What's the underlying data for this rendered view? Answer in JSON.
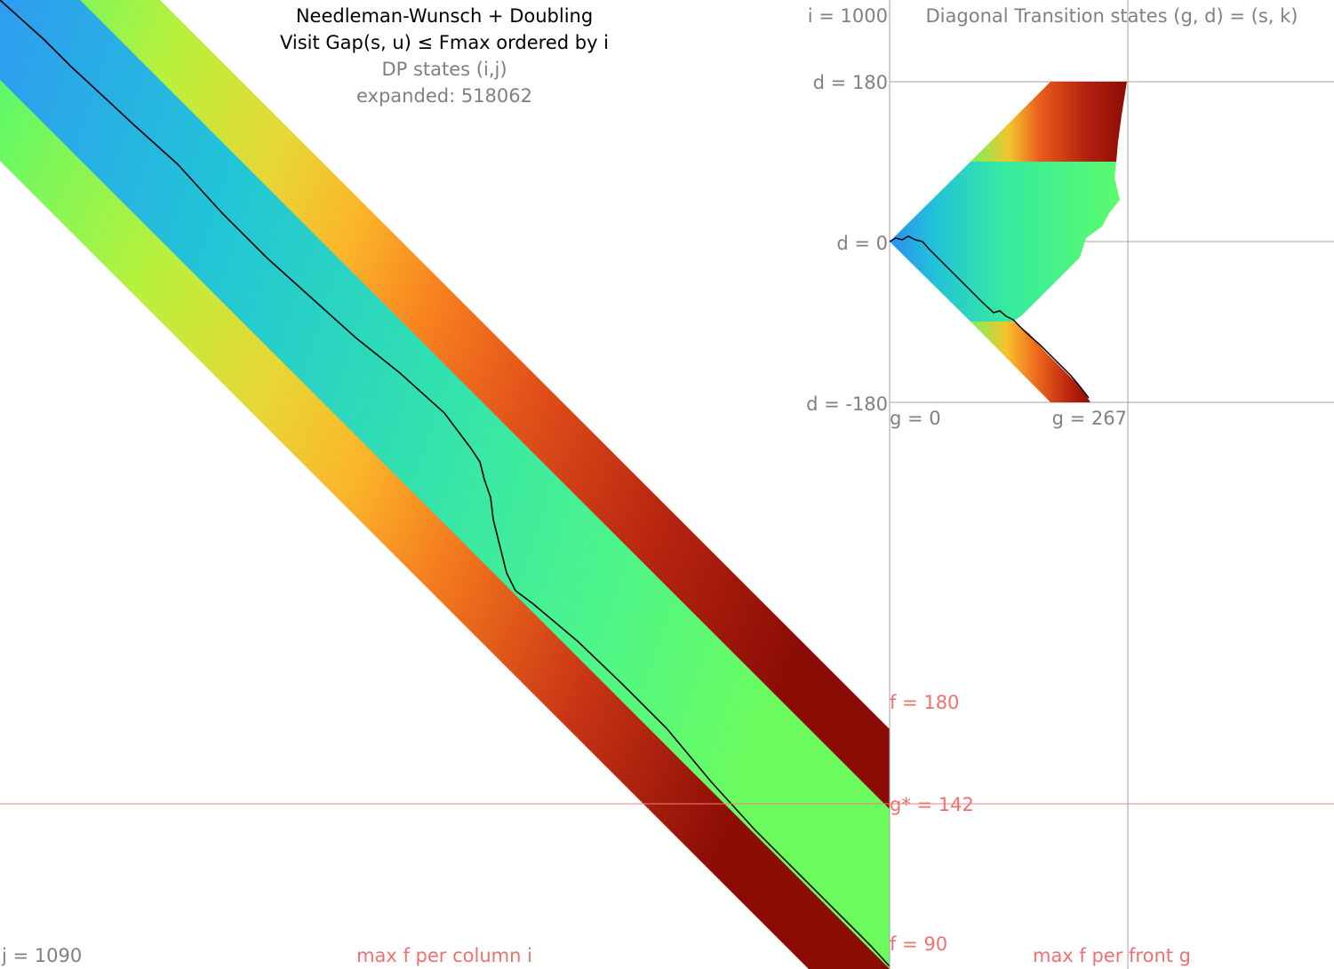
{
  "title": {
    "line1": "Needleman-Wunsch + Doubling",
    "line2": "Visit Gap(s, u) ≤ Fmax ordered by i",
    "line3": "DP states (i,j)",
    "expanded": "expanded: 518062"
  },
  "dp_panel": {
    "corner_label": "j = 1090",
    "bottom_label": "max f per column i"
  },
  "dt_panel": {
    "i_label": "i = 1000",
    "title": "Diagonal Transition states (g, d) = (s, k)",
    "d_labels": [
      "d = 180",
      "d = 0",
      "d = -180"
    ],
    "g_labels": [
      "g = 0",
      "g = 267"
    ],
    "bottom_label": "max f per front g"
  },
  "threshold_lines": {
    "f180": "f = 180",
    "gstar": "g* = 142",
    "f90": "f = 90"
  },
  "colors": {
    "path": "#000000",
    "grid": "#808080",
    "threshold_text": "#f07070",
    "gstar_line": "#f08080"
  }
}
